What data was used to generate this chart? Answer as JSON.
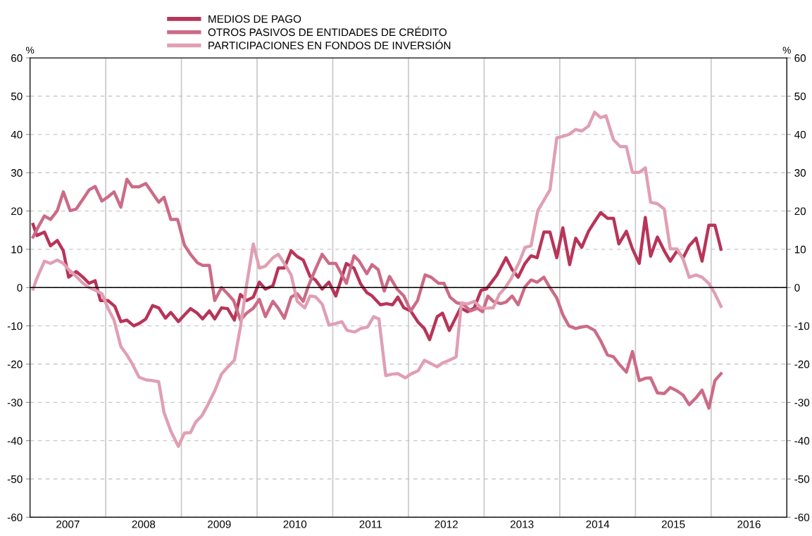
{
  "chart_data": {
    "type": "line",
    "legend": "top",
    "grid": "y",
    "line_style": "solid",
    "annotations": [
      "%",
      "%"
    ],
    "xlim": [
      2007,
      2017
    ],
    "xticks": [
      {
        "value": 2007.5,
        "label": "2007"
      },
      {
        "value": 2008.5,
        "label": "2008"
      },
      {
        "value": 2009.5,
        "label": "2009"
      },
      {
        "value": 2010.5,
        "label": "2010"
      },
      {
        "value": 2011.5,
        "label": "2011"
      },
      {
        "value": 2012.5,
        "label": "2012"
      },
      {
        "value": 2013.5,
        "label": "2013"
      },
      {
        "value": 2014.5,
        "label": "2014"
      },
      {
        "value": 2015.5,
        "label": "2015"
      },
      {
        "value": 2016.5,
        "label": "2016"
      }
    ],
    "ylim": [
      -60,
      60
    ],
    "yticks": [
      -60,
      -50,
      -40,
      -30,
      -20,
      -10,
      0,
      10,
      20,
      30,
      40,
      50,
      60
    ],
    "y2lim": [
      -60,
      60
    ],
    "y2ticks": [
      -60,
      -50,
      -40,
      -30,
      -20,
      -10,
      0,
      10,
      20,
      30,
      40,
      50,
      60
    ],
    "ref_lines": [
      {
        "axis": "x",
        "value": 2008,
        "color": "#c8c8c8"
      },
      {
        "axis": "x",
        "value": 2009,
        "color": "#c8c8c8"
      },
      {
        "axis": "x",
        "value": 2010,
        "color": "#c8c8c8"
      },
      {
        "axis": "x",
        "value": 2011,
        "color": "#c8c8c8"
      },
      {
        "axis": "x",
        "value": 2012,
        "color": "#c8c8c8"
      },
      {
        "axis": "x",
        "value": 2013,
        "color": "#c8c8c8"
      },
      {
        "axis": "x",
        "value": 2014,
        "color": "#c8c8c8"
      },
      {
        "axis": "x",
        "value": 2015,
        "color": "#c8c8c8"
      },
      {
        "axis": "x",
        "value": 2016,
        "color": "#c8c8c8"
      },
      {
        "axis": "y",
        "value": 0,
        "color": "#000000"
      }
    ],
    "series": [
      {
        "name": "MEDIOS DE PAGO",
        "color": "#b83459",
        "x": [
          2007.04,
          2007.09,
          2007.19,
          2007.27,
          2007.36,
          2007.44,
          2007.51,
          2007.61,
          2007.7,
          2007.78,
          2007.86,
          2007.93,
          2008.03,
          2008.12,
          2008.2,
          2008.28,
          2008.37,
          2008.44,
          2008.53,
          2008.62,
          2008.7,
          2008.79,
          2008.86,
          2008.96,
          2009.02,
          2009.12,
          2009.21,
          2009.28,
          2009.37,
          2009.44,
          2009.53,
          2009.61,
          2009.7,
          2009.78,
          2009.86,
          2009.95,
          2010.03,
          2010.11,
          2010.21,
          2010.28,
          2010.36,
          2010.45,
          2010.53,
          2010.61,
          2010.7,
          2010.77,
          2010.86,
          2010.95,
          2011.04,
          2011.18,
          2011.28,
          2011.37,
          2011.45,
          2011.52,
          2011.63,
          2011.71,
          2011.79,
          2011.86,
          2011.94,
          2012.03,
          2012.13,
          2012.21,
          2012.28,
          2012.38,
          2012.45,
          2012.54,
          2012.69,
          2012.78,
          2012.87,
          2012.96,
          2013.03,
          2013.17,
          2013.29,
          2013.37,
          2013.45,
          2013.54,
          2013.62,
          2013.7,
          2013.79,
          2013.87,
          2013.96,
          2014.04,
          2014.13,
          2014.21,
          2014.29,
          2014.38,
          2014.46,
          2014.54,
          2014.63,
          2014.71,
          2014.78,
          2014.88,
          2014.96,
          2015.05,
          2015.13,
          2015.2,
          2015.29,
          2015.38,
          2015.46,
          2015.55,
          2015.63,
          2015.71,
          2015.8,
          2015.88,
          2015.97,
          2016.05,
          2016.13
        ],
        "values": [
          16.5,
          13.6,
          14.5,
          10.9,
          12.3,
          9.6,
          2.7,
          4.2,
          2.7,
          1.1,
          1.8,
          -3.4,
          -3.4,
          -4.9,
          -8.9,
          -8.5,
          -10.0,
          -9.4,
          -8.2,
          -4.7,
          -5.3,
          -8.0,
          -6.5,
          -8.9,
          -7.6,
          -5.5,
          -6.7,
          -8.2,
          -6.1,
          -8.2,
          -5.3,
          -5.5,
          -8.5,
          -1.8,
          -3.4,
          -2.5,
          1.4,
          -0.4,
          0.5,
          5.1,
          5.1,
          9.6,
          8.1,
          7.2,
          2.9,
          2.0,
          -0.4,
          1.4,
          -2.2,
          6.3,
          5.1,
          0.9,
          -1.3,
          -2.2,
          -4.5,
          -4.2,
          -4.5,
          -2.5,
          -5.3,
          -6.1,
          -9.1,
          -10.7,
          -13.6,
          -7.6,
          -6.7,
          -11.2,
          -5.3,
          -6.3,
          -5.3,
          -0.7,
          -0.4,
          3.3,
          7.8,
          4.7,
          2.7,
          6.3,
          8.3,
          7.8,
          14.5,
          14.5,
          7.8,
          15.6,
          6.0,
          12.9,
          10.5,
          14.7,
          17.2,
          19.6,
          18.1,
          18.1,
          11.4,
          14.7,
          10.1,
          6.3,
          18.3,
          8.2,
          13.2,
          9.6,
          6.9,
          9.6,
          7.8,
          10.9,
          12.9,
          6.9,
          16.3,
          16.3,
          10.0
        ]
      },
      {
        "name": "OTROS PASIVOS DE ENTIDADES DE CRÉDITO",
        "color": "#cc6b87",
        "x": [
          2007.04,
          2007.11,
          2007.19,
          2007.27,
          2007.36,
          2007.44,
          2007.53,
          2007.61,
          2007.69,
          2007.78,
          2007.86,
          2007.95,
          2008.03,
          2008.11,
          2008.2,
          2008.28,
          2008.35,
          2008.44,
          2008.53,
          2008.62,
          2008.7,
          2008.77,
          2008.86,
          2008.95,
          2009.04,
          2009.12,
          2009.21,
          2009.28,
          2009.37,
          2009.44,
          2009.53,
          2009.61,
          2009.69,
          2009.78,
          2009.86,
          2009.95,
          2010.03,
          2010.11,
          2010.21,
          2010.28,
          2010.36,
          2010.45,
          2010.53,
          2010.61,
          2010.68,
          2010.77,
          2010.86,
          2010.95,
          2011.04,
          2011.18,
          2011.28,
          2011.35,
          2011.45,
          2011.52,
          2011.6,
          2011.68,
          2011.75,
          2011.85,
          2011.94,
          2012.03,
          2012.12,
          2012.22,
          2012.3,
          2012.4,
          2012.47,
          2012.55,
          2012.64,
          2012.72,
          2012.82,
          2012.91,
          2012.98,
          2013.05,
          2013.12,
          2013.22,
          2013.29,
          2013.37,
          2013.45,
          2013.54,
          2013.62,
          2013.7,
          2013.79,
          2013.87,
          2013.96,
          2014.04,
          2014.12,
          2014.21,
          2014.29,
          2014.36,
          2014.46,
          2014.54,
          2014.63,
          2014.71,
          2014.78,
          2014.88,
          2014.96,
          2015.05,
          2015.13,
          2015.2,
          2015.29,
          2015.38,
          2015.46,
          2015.55,
          2015.63,
          2015.71,
          2015.8,
          2015.88,
          2015.97,
          2016.05,
          2016.13
        ],
        "values": [
          13.2,
          15.9,
          18.7,
          17.8,
          20.1,
          25.0,
          20.1,
          20.5,
          22.8,
          25.5,
          26.4,
          22.6,
          23.7,
          25.0,
          21.0,
          28.3,
          26.3,
          26.3,
          27.2,
          24.6,
          22.3,
          23.6,
          17.8,
          17.8,
          11.1,
          8.7,
          6.5,
          5.8,
          5.8,
          -3.4,
          0,
          -1.6,
          -3.4,
          -8.5,
          -6.7,
          -5.4,
          -3.1,
          -7.6,
          -3.6,
          -5.4,
          -8.0,
          -2.5,
          -1.6,
          -3.6,
          0.5,
          4.7,
          8.7,
          6.3,
          6.3,
          1.1,
          8.3,
          6.9,
          3.6,
          6.0,
          4.7,
          -0.9,
          2.9,
          -0.4,
          -2.2,
          -6.1,
          -3.4,
          3.3,
          2.7,
          1.1,
          1.1,
          -2.5,
          -4.0,
          -4.3,
          -6.1,
          -5.4,
          -6.3,
          -2.2,
          -3.6,
          -4.2,
          -3.8,
          -2.2,
          -4.5,
          0.2,
          2.0,
          1.4,
          2.7,
          0,
          -2.7,
          -7.1,
          -10.0,
          -10.7,
          -10.3,
          -10.1,
          -11.2,
          -13.9,
          -17.6,
          -18.1,
          -19.9,
          -22.1,
          -16.7,
          -24.3,
          -23.7,
          -23.6,
          -27.5,
          -27.7,
          -26.1,
          -27.0,
          -28.1,
          -30.6,
          -28.8,
          -26.8,
          -31.5,
          -24.3,
          -22.5
        ]
      },
      {
        "name": "PARTICIPACIONES EN FONDOS DE INVERSIÓN",
        "color": "#e09fb3",
        "x": [
          2007.04,
          2007.09,
          2007.19,
          2007.27,
          2007.36,
          2007.44,
          2007.51,
          2007.61,
          2007.7,
          2007.78,
          2007.86,
          2007.95,
          2008.03,
          2008.11,
          2008.2,
          2008.28,
          2008.35,
          2008.44,
          2008.53,
          2008.62,
          2008.7,
          2008.77,
          2008.86,
          2008.96,
          2009.04,
          2009.12,
          2009.19,
          2009.27,
          2009.35,
          2009.44,
          2009.53,
          2009.61,
          2009.7,
          2009.78,
          2009.86,
          2009.95,
          2010.03,
          2010.11,
          2010.21,
          2010.28,
          2010.37,
          2010.45,
          2010.53,
          2010.63,
          2010.7,
          2010.77,
          2010.86,
          2010.95,
          2011.04,
          2011.12,
          2011.19,
          2011.29,
          2011.37,
          2011.46,
          2011.54,
          2011.61,
          2011.7,
          2011.79,
          2011.86,
          2011.96,
          2012.03,
          2012.13,
          2012.21,
          2012.28,
          2012.38,
          2012.45,
          2012.54,
          2012.63,
          2012.7,
          2012.78,
          2012.87,
          2012.96,
          2013.03,
          2013.12,
          2013.2,
          2013.28,
          2013.36,
          2013.47,
          2013.54,
          2013.62,
          2013.71,
          2013.79,
          2013.87,
          2013.96,
          2014.04,
          2014.12,
          2014.21,
          2014.29,
          2014.38,
          2014.46,
          2014.54,
          2014.61,
          2014.71,
          2014.8,
          2014.88,
          2014.96,
          2015.05,
          2015.13,
          2015.2,
          2015.29,
          2015.38,
          2015.46,
          2015.55,
          2015.63,
          2015.71,
          2015.8,
          2015.88,
          2015.97,
          2016.05,
          2016.13
        ],
        "values": [
          -0.4,
          2.4,
          6.9,
          6.3,
          7.2,
          6.3,
          4.7,
          2.9,
          1.1,
          0,
          -0.7,
          -1.6,
          -5.4,
          -8.5,
          -15.4,
          -17.6,
          -19.9,
          -23.4,
          -24.1,
          -24.3,
          -24.6,
          -32.6,
          -37.5,
          -41.5,
          -38.0,
          -37.9,
          -35.1,
          -33.5,
          -30.6,
          -27.0,
          -22.6,
          -20.8,
          -19.0,
          -10.3,
          0.5,
          11.4,
          5.1,
          5.6,
          7.8,
          8.7,
          6.0,
          3.3,
          -3.6,
          -5.3,
          -2.2,
          -2.4,
          -4.3,
          -9.8,
          -9.4,
          -8.9,
          -11.2,
          -11.6,
          -10.7,
          -10.3,
          -7.6,
          -8.2,
          -23.0,
          -22.6,
          -22.5,
          -23.6,
          -22.6,
          -21.7,
          -19.0,
          -19.7,
          -20.7,
          -19.7,
          -19.0,
          -18.1,
          -4.0,
          -4.3,
          -3.6,
          -5.3,
          -5.4,
          -5.3,
          -1.8,
          0,
          2.4,
          6.9,
          10.5,
          10.9,
          20.1,
          22.8,
          25.5,
          39.1,
          39.5,
          40.0,
          41.3,
          40.9,
          42.2,
          45.8,
          44.4,
          44.9,
          38.6,
          36.8,
          36.8,
          30.1,
          30.1,
          31.3,
          22.3,
          21.9,
          20.5,
          10.1,
          10.1,
          7.4,
          2.7,
          3.3,
          2.7,
          1.1,
          -1.6,
          -4.9
        ]
      }
    ]
  }
}
